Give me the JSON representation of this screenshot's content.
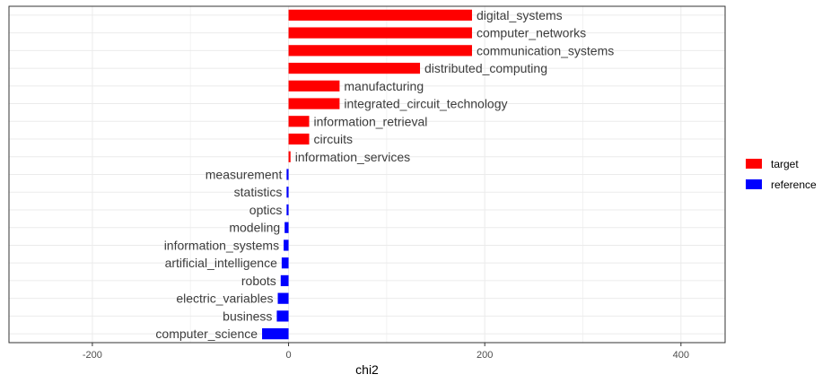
{
  "chart_data": {
    "type": "bar",
    "orientation": "horizontal",
    "title": "",
    "xlabel": "chi2",
    "ylabel": "",
    "xlim": [
      -285,
      445
    ],
    "x_ticks": [
      -200,
      0,
      200,
      400
    ],
    "grid": true,
    "legend_position": "right",
    "legend": [
      {
        "name": "target",
        "color": "#ff0000"
      },
      {
        "name": "reference",
        "color": "#0000ff"
      }
    ],
    "bars": [
      {
        "label": "digital_systems",
        "value": 187,
        "group": "target"
      },
      {
        "label": "computer_networks",
        "value": 187,
        "group": "target"
      },
      {
        "label": "communication_systems",
        "value": 187,
        "group": "target"
      },
      {
        "label": "distributed_computing",
        "value": 134,
        "group": "target"
      },
      {
        "label": "manufacturing",
        "value": 52,
        "group": "target"
      },
      {
        "label": "integrated_circuit_technology",
        "value": 52,
        "group": "target"
      },
      {
        "label": "information_retrieval",
        "value": 21,
        "group": "target"
      },
      {
        "label": "circuits",
        "value": 21,
        "group": "target"
      },
      {
        "label": "information_services",
        "value": 2,
        "group": "target"
      },
      {
        "label": "measurement",
        "value": -2,
        "group": "reference"
      },
      {
        "label": "statistics",
        "value": -2,
        "group": "reference"
      },
      {
        "label": "optics",
        "value": -2,
        "group": "reference"
      },
      {
        "label": "modeling",
        "value": -4,
        "group": "reference"
      },
      {
        "label": "information_systems",
        "value": -5,
        "group": "reference"
      },
      {
        "label": "artificial_intelligence",
        "value": -7,
        "group": "reference"
      },
      {
        "label": "robots",
        "value": -8,
        "group": "reference"
      },
      {
        "label": "electric_variables",
        "value": -11,
        "group": "reference"
      },
      {
        "label": "business",
        "value": -12,
        "group": "reference"
      },
      {
        "label": "computer_science",
        "value": -27,
        "group": "reference"
      }
    ]
  }
}
